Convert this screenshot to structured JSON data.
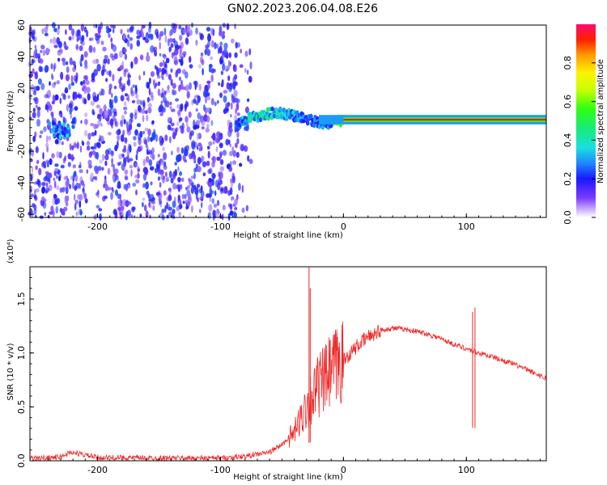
{
  "figure": {
    "title": "GN02.2023.206.04.08.E26"
  },
  "colorbar": {
    "label": "Normalized spectral amplitude",
    "ticks": [
      "0.0",
      "0.2",
      "0.4",
      "0.6",
      "0.8"
    ],
    "range": [
      0,
      1
    ]
  },
  "chart_data": [
    {
      "type": "heatmap",
      "xlabel": "Height of straight line (km)",
      "ylabel": "Frequency (Hz)",
      "xlim": [
        -255,
        165
      ],
      "ylim": [
        -62,
        60
      ],
      "xticks": [
        "-200",
        "-100",
        "0",
        "100"
      ],
      "yticks": [
        "-60",
        "-40",
        "-20",
        "0",
        "20",
        "40",
        "60"
      ],
      "grid": false,
      "features": {
        "noise_region_x": [
          -255,
          -85
        ],
        "noise_amplitude_range": [
          0.05,
          0.25
        ],
        "bright_blob_x": [
          -240,
          -222
        ],
        "bright_blob_freq": -7,
        "trace": {
          "x": [
            -88,
            -80,
            -70,
            -60,
            -50,
            -40,
            -30,
            -20,
            -10,
            0,
            165
          ],
          "freq": [
            -4,
            0,
            2,
            4,
            4,
            2,
            0,
            -2,
            -2,
            0,
            0
          ],
          "amplitude": [
            0.25,
            0.4,
            0.45,
            0.45,
            0.4,
            0.35,
            0.3,
            0.3,
            0.35,
            0.95,
            0.95
          ]
        }
      }
    },
    {
      "type": "line",
      "xlabel": "Height of straight line (km)",
      "ylabel": "SNR (10 * v/v)",
      "yscale_note": "(x10⁴)",
      "xlim": [
        -255,
        165
      ],
      "ylim": [
        0,
        18000
      ],
      "xticks": [
        "-200",
        "-100",
        "0",
        "100"
      ],
      "yticks": [
        "0.0",
        "0.5",
        "1.0",
        "1.5"
      ],
      "color": "#ef2929",
      "x": [
        -255,
        -230,
        -222,
        -200,
        -150,
        -100,
        -80,
        -60,
        -50,
        -40,
        -35,
        -30,
        -25,
        -20,
        -15,
        -10,
        -5,
        0,
        10,
        20,
        30,
        40,
        50,
        60,
        70,
        80,
        90,
        100,
        105,
        110,
        120,
        130,
        140,
        150,
        160,
        165
      ],
      "y": [
        200,
        350,
        800,
        300,
        250,
        250,
        400,
        800,
        1500,
        2600,
        3800,
        5200,
        6000,
        7000,
        7500,
        8200,
        8800,
        9300,
        10500,
        11500,
        12100,
        12300,
        12200,
        12000,
        11700,
        11300,
        10800,
        10400,
        10200,
        10000,
        9700,
        9300,
        8900,
        8400,
        7900,
        7600
      ],
      "spikes": [
        {
          "x": -28,
          "y": 18000
        },
        {
          "x": -27,
          "y": 16000
        },
        {
          "x": 107,
          "y": 14200
        },
        {
          "x": 105,
          "y": 13800
        }
      ]
    }
  ]
}
